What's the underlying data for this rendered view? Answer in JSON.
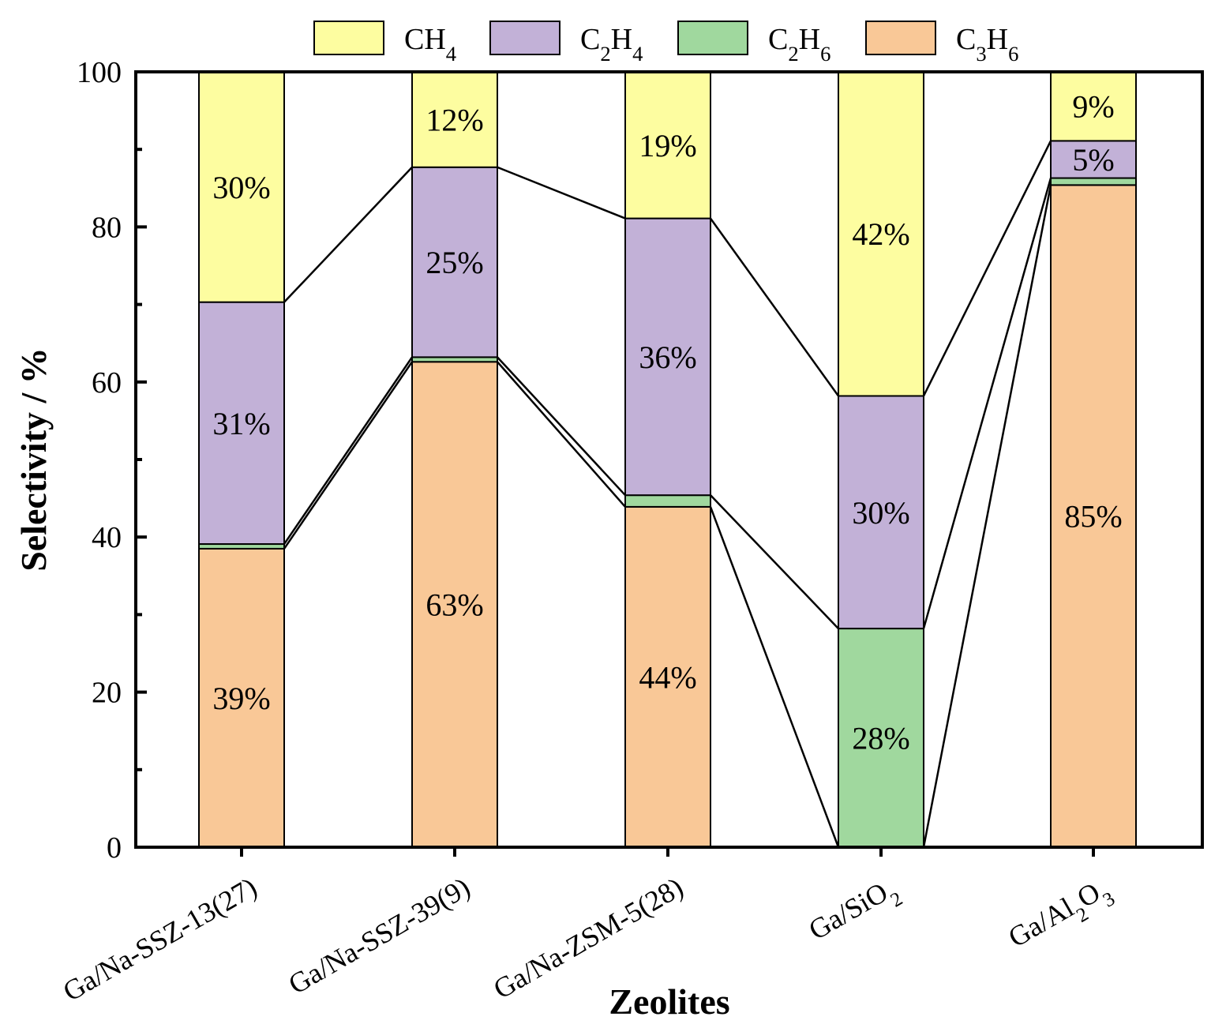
{
  "chart_data": {
    "type": "bar",
    "stacked": true,
    "title": "",
    "xlabel": "Zeolites",
    "ylabel": "Selectivity / %",
    "ylim": [
      0,
      100
    ],
    "yticks": [
      "0",
      "20",
      "40",
      "60",
      "80",
      "100"
    ],
    "legend_position": "top",
    "categories": [
      {
        "base": "Ga/Na-SSZ-13(27)",
        "parts": [
          {
            "t": "Ga/Na-SSZ-13(27)",
            "sub": false
          }
        ]
      },
      {
        "base": "Ga/Na-SSZ-39(9)",
        "parts": [
          {
            "t": "Ga/Na-SSZ-39(9)",
            "sub": false
          }
        ]
      },
      {
        "base": "Ga/Na-ZSM-5(28)",
        "parts": [
          {
            "t": "Ga/Na-ZSM-5(28)",
            "sub": false
          }
        ]
      },
      {
        "base": "Ga/SiO2",
        "parts": [
          {
            "t": "Ga/SiO",
            "sub": false
          },
          {
            "t": "2",
            "sub": true
          }
        ]
      },
      {
        "base": "Ga/Al2O3",
        "parts": [
          {
            "t": "Ga/Al",
            "sub": false
          },
          {
            "t": "2",
            "sub": true
          },
          {
            "t": "O",
            "sub": false
          },
          {
            "t": "3",
            "sub": true
          }
        ]
      }
    ],
    "series": [
      {
        "name": "C3H6",
        "color": "#f9c897",
        "legend_parts": [
          {
            "t": "C",
            "sub": false
          },
          {
            "t": "3",
            "sub": true
          },
          {
            "t": "H",
            "sub": false
          },
          {
            "t": "6",
            "sub": true
          }
        ],
        "values": [
          38.5,
          62.6,
          43.9,
          0,
          85.4
        ],
        "labels": [
          "39%",
          "63%",
          "44%",
          "",
          "85%"
        ]
      },
      {
        "name": "C2H6",
        "color": "#a0d89e",
        "legend_parts": [
          {
            "t": "C",
            "sub": false
          },
          {
            "t": "2",
            "sub": true
          },
          {
            "t": "H",
            "sub": false
          },
          {
            "t": "6",
            "sub": true
          }
        ],
        "values": [
          0.6,
          0.6,
          1.5,
          28.2,
          0.9
        ],
        "labels": [
          "",
          "",
          "",
          "28%",
          ""
        ]
      },
      {
        "name": "C2H4",
        "color": "#c2b1d7",
        "legend_parts": [
          {
            "t": "C",
            "sub": false
          },
          {
            "t": "2",
            "sub": true
          },
          {
            "t": "H",
            "sub": false
          },
          {
            "t": "4",
            "sub": true
          }
        ],
        "values": [
          31.2,
          24.5,
          35.7,
          30.0,
          4.8
        ],
        "labels": [
          "31%",
          "25%",
          "36%",
          "30%",
          "5%"
        ]
      },
      {
        "name": "CH4",
        "color": "#fdfda0",
        "legend_parts": [
          {
            "t": "CH",
            "sub": false
          },
          {
            "t": "4",
            "sub": true
          }
        ],
        "values": [
          29.7,
          12.3,
          18.9,
          41.8,
          8.9
        ],
        "labels": [
          "30%",
          "12%",
          "19%",
          "42%",
          "9%"
        ]
      }
    ],
    "legend_order": [
      "CH4",
      "C2H4",
      "C2H6",
      "C3H6"
    ],
    "connector_lines": true
  }
}
